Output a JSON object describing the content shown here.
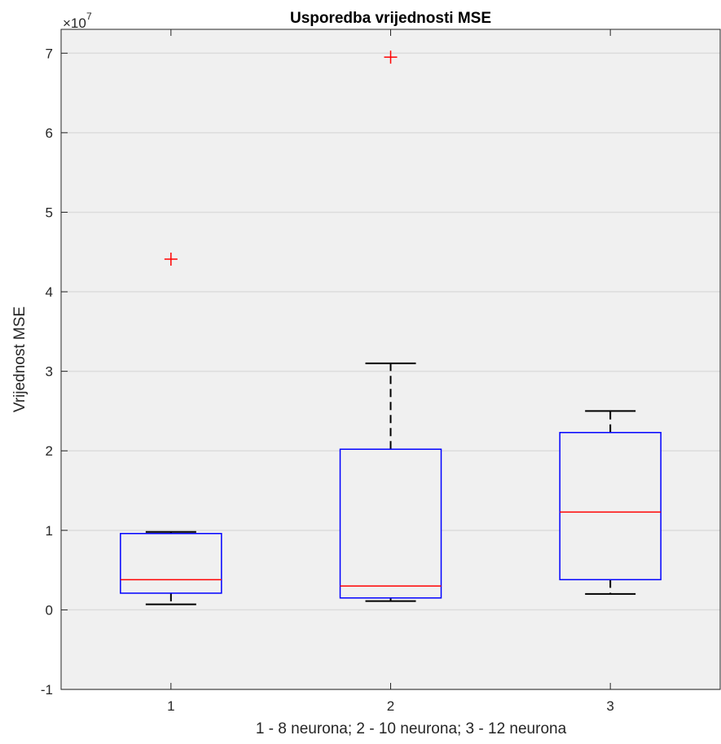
{
  "chart_data": {
    "type": "boxplot",
    "title": "Usporedba vrijednosti MSE",
    "xlabel": "1 - 8 neurona; 2 - 10 neurona; 3 - 12 neurona",
    "ylabel": "Vrijednost MSE",
    "y_exponent_base": "×10",
    "y_exponent_power": "7",
    "ylim": [
      -1,
      7.3
    ],
    "yticks": [
      -1,
      0,
      1,
      2,
      3,
      4,
      5,
      6,
      7
    ],
    "ytick_labels": [
      "-1",
      "0",
      "1",
      "2",
      "3",
      "4",
      "5",
      "6",
      "7"
    ],
    "categories": [
      "1",
      "2",
      "3"
    ],
    "grid": true,
    "boxes": [
      {
        "category": "1",
        "whisker_low": 0.07,
        "q1": 0.21,
        "median": 0.38,
        "q3": 0.96,
        "whisker_high": 0.98,
        "outliers": [
          4.41
        ]
      },
      {
        "category": "2",
        "whisker_low": 0.11,
        "q1": 0.15,
        "median": 0.3,
        "q3": 2.02,
        "whisker_high": 3.1,
        "outliers": [
          6.95
        ]
      },
      {
        "category": "3",
        "whisker_low": 0.2,
        "q1": 0.38,
        "median": 1.23,
        "q3": 2.23,
        "whisker_high": 2.5,
        "outliers": []
      }
    ],
    "colors": {
      "box": "#0000ff",
      "median": "#ff0000",
      "whisker": "#000000",
      "outlier": "#ff0000",
      "plot_bg": "#f0f0f0",
      "grid": "#dcdcdc"
    }
  }
}
